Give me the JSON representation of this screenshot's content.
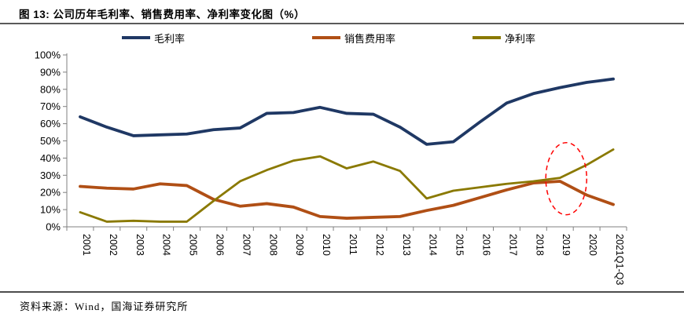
{
  "header": {
    "title": "图 13: 公司历年毛利率、销售费用率、净利率变化图（%）"
  },
  "footer": {
    "source": "资料来源：Wind，国海证券研究所"
  },
  "colors": {
    "gross_margin": "#1F3864",
    "selling_expense_ratio": "#B04F15",
    "net_margin": "#8A7900",
    "highlight_ellipse": "#FF0000",
    "axis": "#808080",
    "rule": "#595959"
  },
  "chart_data": {
    "type": "line",
    "title": "公司历年毛利率、销售费用率、净利率变化图（%）",
    "x": [
      "2001",
      "2002",
      "2003",
      "2004",
      "2005",
      "2006",
      "2007",
      "2008",
      "2009",
      "2010",
      "2011",
      "2012",
      "2013",
      "2014",
      "2015",
      "2016",
      "2017",
      "2018",
      "2019",
      "2020",
      "2021Q1-Q3"
    ],
    "series": [
      {
        "name": "毛利率",
        "color": "#1F3864",
        "width": 3.8,
        "values": [
          64,
          58,
          53,
          53.5,
          54,
          56.5,
          57.5,
          66,
          66.5,
          69.5,
          66,
          65.5,
          58,
          48,
          49.5,
          61,
          72,
          77.5,
          81,
          84,
          86
        ]
      },
      {
        "name": "销售费用率",
        "color": "#B04F15",
        "width": 3.8,
        "values": [
          23.5,
          22.5,
          22,
          25,
          24,
          16,
          12,
          13.5,
          11.5,
          6,
          5,
          5.5,
          6,
          9.5,
          12.5,
          17,
          21.5,
          25.5,
          26.5,
          18.5,
          13
        ]
      },
      {
        "name": "净利率",
        "color": "#8A7900",
        "width": 2.8,
        "values": [
          8.5,
          3,
          3.5,
          3,
          3,
          15,
          26.5,
          33,
          38.5,
          41,
          34,
          38,
          32.5,
          16.5,
          21,
          23,
          25,
          26.5,
          28.5,
          36,
          45
        ]
      }
    ],
    "ylim": [
      0,
      100
    ],
    "ytick_step": 10,
    "ytick_suffix": "%",
    "grid": false,
    "legend_position": "top",
    "annotation": {
      "shape": "dashed-ellipse",
      "x_category": "2019",
      "x_offset": 8,
      "x_radius": 26,
      "y_center": 28,
      "y_half_range": 21,
      "color": "#FF0000"
    }
  }
}
